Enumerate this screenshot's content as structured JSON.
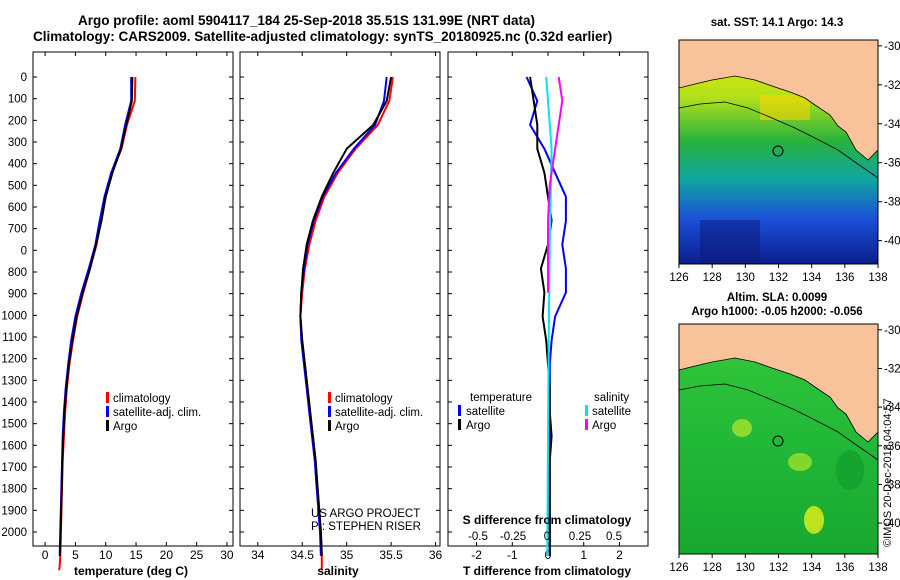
{
  "header": {
    "line1": "Argo profile: aoml 5904117_184 25-Sep-2018 35.51S 131.99E (NRT data)",
    "line2": "Climatology: CARS2009. Satellite-adjusted climatology: synTS_20180925.nc (0.32d earlier)"
  },
  "colors": {
    "climatology": "#ff0000",
    "satellite": "#0000ff",
    "argo": "#000000",
    "cyan": "#00e5ee",
    "magenta": "#ff00ff",
    "land": "#f8c39a"
  },
  "depth_ticks": [
    0,
    100,
    200,
    300,
    400,
    500,
    600,
    700,
    0,
    800,
    900,
    1000,
    1100,
    1200,
    1300,
    1400,
    1500,
    1600,
    1700,
    1800,
    1900,
    2000
  ],
  "panels": {
    "temperature": {
      "xlabel": "temperature (deg C)",
      "xticks": [
        "0",
        "5",
        "10",
        "15",
        "20",
        "25",
        "30"
      ],
      "legend": [
        "climatology",
        "satellite-adj. clim.",
        "Argo"
      ]
    },
    "salinity": {
      "xlabel": "salinity",
      "xticks": [
        "34",
        "34.5",
        "35",
        "35.5",
        "36"
      ],
      "legend": [
        "climatology",
        "satellite-adj. clim.",
        "Argo"
      ],
      "credit1": "US ARGO PROJECT",
      "credit2": "PI: STEPHEN RISER"
    },
    "difference": {
      "xlabel": "T difference from climatology",
      "toplabel": "S difference from climatology",
      "xticks": [
        "-2",
        "-1",
        "0",
        "1",
        "2"
      ],
      "sticks": [
        "-0.5",
        "-0.25",
        "0",
        "0.25",
        "0.5"
      ],
      "legend_t_title": "temperature",
      "legend_t": [
        "satellite",
        "Argo"
      ],
      "legend_s_title": "salinity",
      "legend_s": [
        "satellite",
        "Argo"
      ]
    }
  },
  "maps": {
    "sst_title": "sat. SST: 14.1 Argo: 14.3",
    "sla_title1": "Altim. SLA: 0.0099",
    "sla_title2": "Argo h1000: -0.05 h2000: -0.056",
    "lat_ticks": [
      "-30",
      "-32",
      "-34",
      "-36",
      "-38",
      "-40"
    ],
    "lon_ticks": [
      "126",
      "128",
      "130",
      "132",
      "134",
      "136",
      "138"
    ]
  },
  "stamp": "©IMOS 20-Dec-2018 04:04:57",
  "chart_data": [
    {
      "type": "line",
      "title": "",
      "xlabel": "temperature (deg C)",
      "ylabel": "",
      "xlim": [
        -2,
        31
      ],
      "ylim": [
        2050,
        -5
      ],
      "series": [
        {
          "name": "climatology",
          "x": [
            14.9,
            14.8,
            13.5,
            12.6,
            11.0,
            10.0,
            9.2,
            8.5,
            7.4,
            6.3,
            5.3,
            4.6,
            4.0,
            3.6,
            3.3,
            3.1,
            2.9,
            2.8,
            2.7,
            2.6,
            2.5,
            2.4,
            2.3
          ],
          "y": [
            0,
            100,
            200,
            300,
            400,
            500,
            600,
            700,
            800,
            900,
            1000,
            1100,
            1200,
            1300,
            1400,
            1500,
            1600,
            1700,
            1800,
            1900,
            2000,
            2040,
            2060
          ]
        },
        {
          "name": "satellite-adj. clim.",
          "x": [
            14.2,
            14.2,
            13.2,
            12.4,
            10.9,
            9.8,
            9.0,
            8.3,
            7.2,
            6.0,
            5.0,
            4.3,
            3.8,
            3.4,
            3.1,
            2.9,
            2.8,
            2.7,
            2.6,
            2.5,
            2.4
          ],
          "y": [
            0,
            100,
            200,
            300,
            400,
            500,
            600,
            700,
            800,
            900,
            1000,
            1100,
            1200,
            1300,
            1400,
            1500,
            1600,
            1700,
            1800,
            1900,
            2000
          ]
        },
        {
          "name": "Argo",
          "x": [
            14.4,
            14.3,
            13.4,
            12.5,
            11.1,
            10.0,
            9.3,
            8.4,
            7.4,
            6.2,
            5.2,
            4.5,
            3.9,
            3.5,
            3.2,
            3.0,
            2.85,
            2.75,
            2.65,
            2.55,
            2.45
          ],
          "y": [
            0,
            100,
            200,
            300,
            400,
            500,
            600,
            700,
            800,
            900,
            1000,
            1100,
            1200,
            1300,
            1400,
            1500,
            1600,
            1700,
            1800,
            1900,
            2000
          ]
        }
      ]
    },
    {
      "type": "line",
      "title": "",
      "xlabel": "salinity",
      "ylabel": "",
      "xlim": [
        33.8,
        36.05
      ],
      "ylim": [
        2050,
        -5
      ],
      "series": [
        {
          "name": "climatology",
          "x": [
            35.52,
            35.48,
            35.35,
            35.1,
            34.9,
            34.75,
            34.65,
            34.58,
            34.53,
            34.5,
            34.48,
            34.5,
            34.53,
            34.56,
            34.59,
            34.62,
            34.65,
            34.67,
            34.69,
            34.71,
            34.72,
            34.72
          ],
          "y": [
            0,
            100,
            200,
            300,
            400,
            500,
            600,
            700,
            800,
            900,
            1000,
            1100,
            1200,
            1300,
            1400,
            1500,
            1600,
            1700,
            1800,
            1900,
            2000,
            2060
          ]
        },
        {
          "name": "satellite-adj. clim.",
          "x": [
            35.45,
            35.42,
            35.32,
            35.08,
            34.88,
            34.73,
            34.63,
            34.56,
            34.52,
            34.49,
            34.48,
            34.49,
            34.52,
            34.55,
            34.58,
            34.61,
            34.64,
            34.66,
            34.68,
            34.7,
            34.71
          ],
          "y": [
            0,
            100,
            200,
            300,
            400,
            500,
            600,
            700,
            800,
            900,
            1000,
            1100,
            1200,
            1300,
            1400,
            1500,
            1600,
            1700,
            1800,
            1900,
            2000
          ]
        },
        {
          "name": "Argo",
          "x": [
            35.5,
            35.45,
            35.3,
            35.0,
            34.85,
            34.72,
            34.62,
            34.55,
            34.51,
            34.49,
            34.48,
            34.5,
            34.53,
            34.56,
            34.59,
            34.62,
            34.65,
            34.67,
            34.69,
            34.71,
            34.72
          ],
          "y": [
            0,
            100,
            200,
            300,
            400,
            500,
            600,
            700,
            800,
            900,
            1000,
            1100,
            1200,
            1300,
            1400,
            1500,
            1600,
            1700,
            1800,
            1900,
            2000
          ]
        }
      ]
    },
    {
      "type": "line",
      "title": "",
      "xlabel": "T difference from climatology",
      "ylabel": "",
      "xlim": [
        -2.8,
        2.8
      ],
      "ylim": [
        2050,
        -5
      ],
      "series": [
        {
          "name": "satellite",
          "x": [
            -0.6,
            -0.3,
            -0.5,
            -0.1,
            0.2,
            0.5,
            0.5,
            0.4,
            0.5,
            0.5,
            0.2,
            0.1,
            0.05,
            0.05,
            0.05,
            0.05,
            0.05,
            0.05,
            0.05,
            0.05,
            0.05
          ],
          "y": [
            0,
            100,
            200,
            300,
            400,
            500,
            600,
            700,
            800,
            900,
            1000,
            1100,
            1200,
            1300,
            1400,
            1500,
            1600,
            1700,
            1800,
            1900,
            2000
          ]
        },
        {
          "name": "Argo",
          "x": [
            -0.5,
            -0.4,
            -0.3,
            -0.3,
            -0.1,
            0.0,
            0.1,
            0.0,
            -0.2,
            -0.1,
            -0.15,
            -0.05,
            0.0,
            0.05,
            0.05,
            0.1,
            0.05,
            0.05,
            0.05,
            0.05,
            0.05
          ],
          "y": [
            0,
            100,
            200,
            300,
            400,
            500,
            600,
            700,
            800,
            900,
            1000,
            1100,
            1200,
            1300,
            1400,
            1500,
            1600,
            1700,
            1800,
            1900,
            2000
          ]
        }
      ]
    }
  ]
}
